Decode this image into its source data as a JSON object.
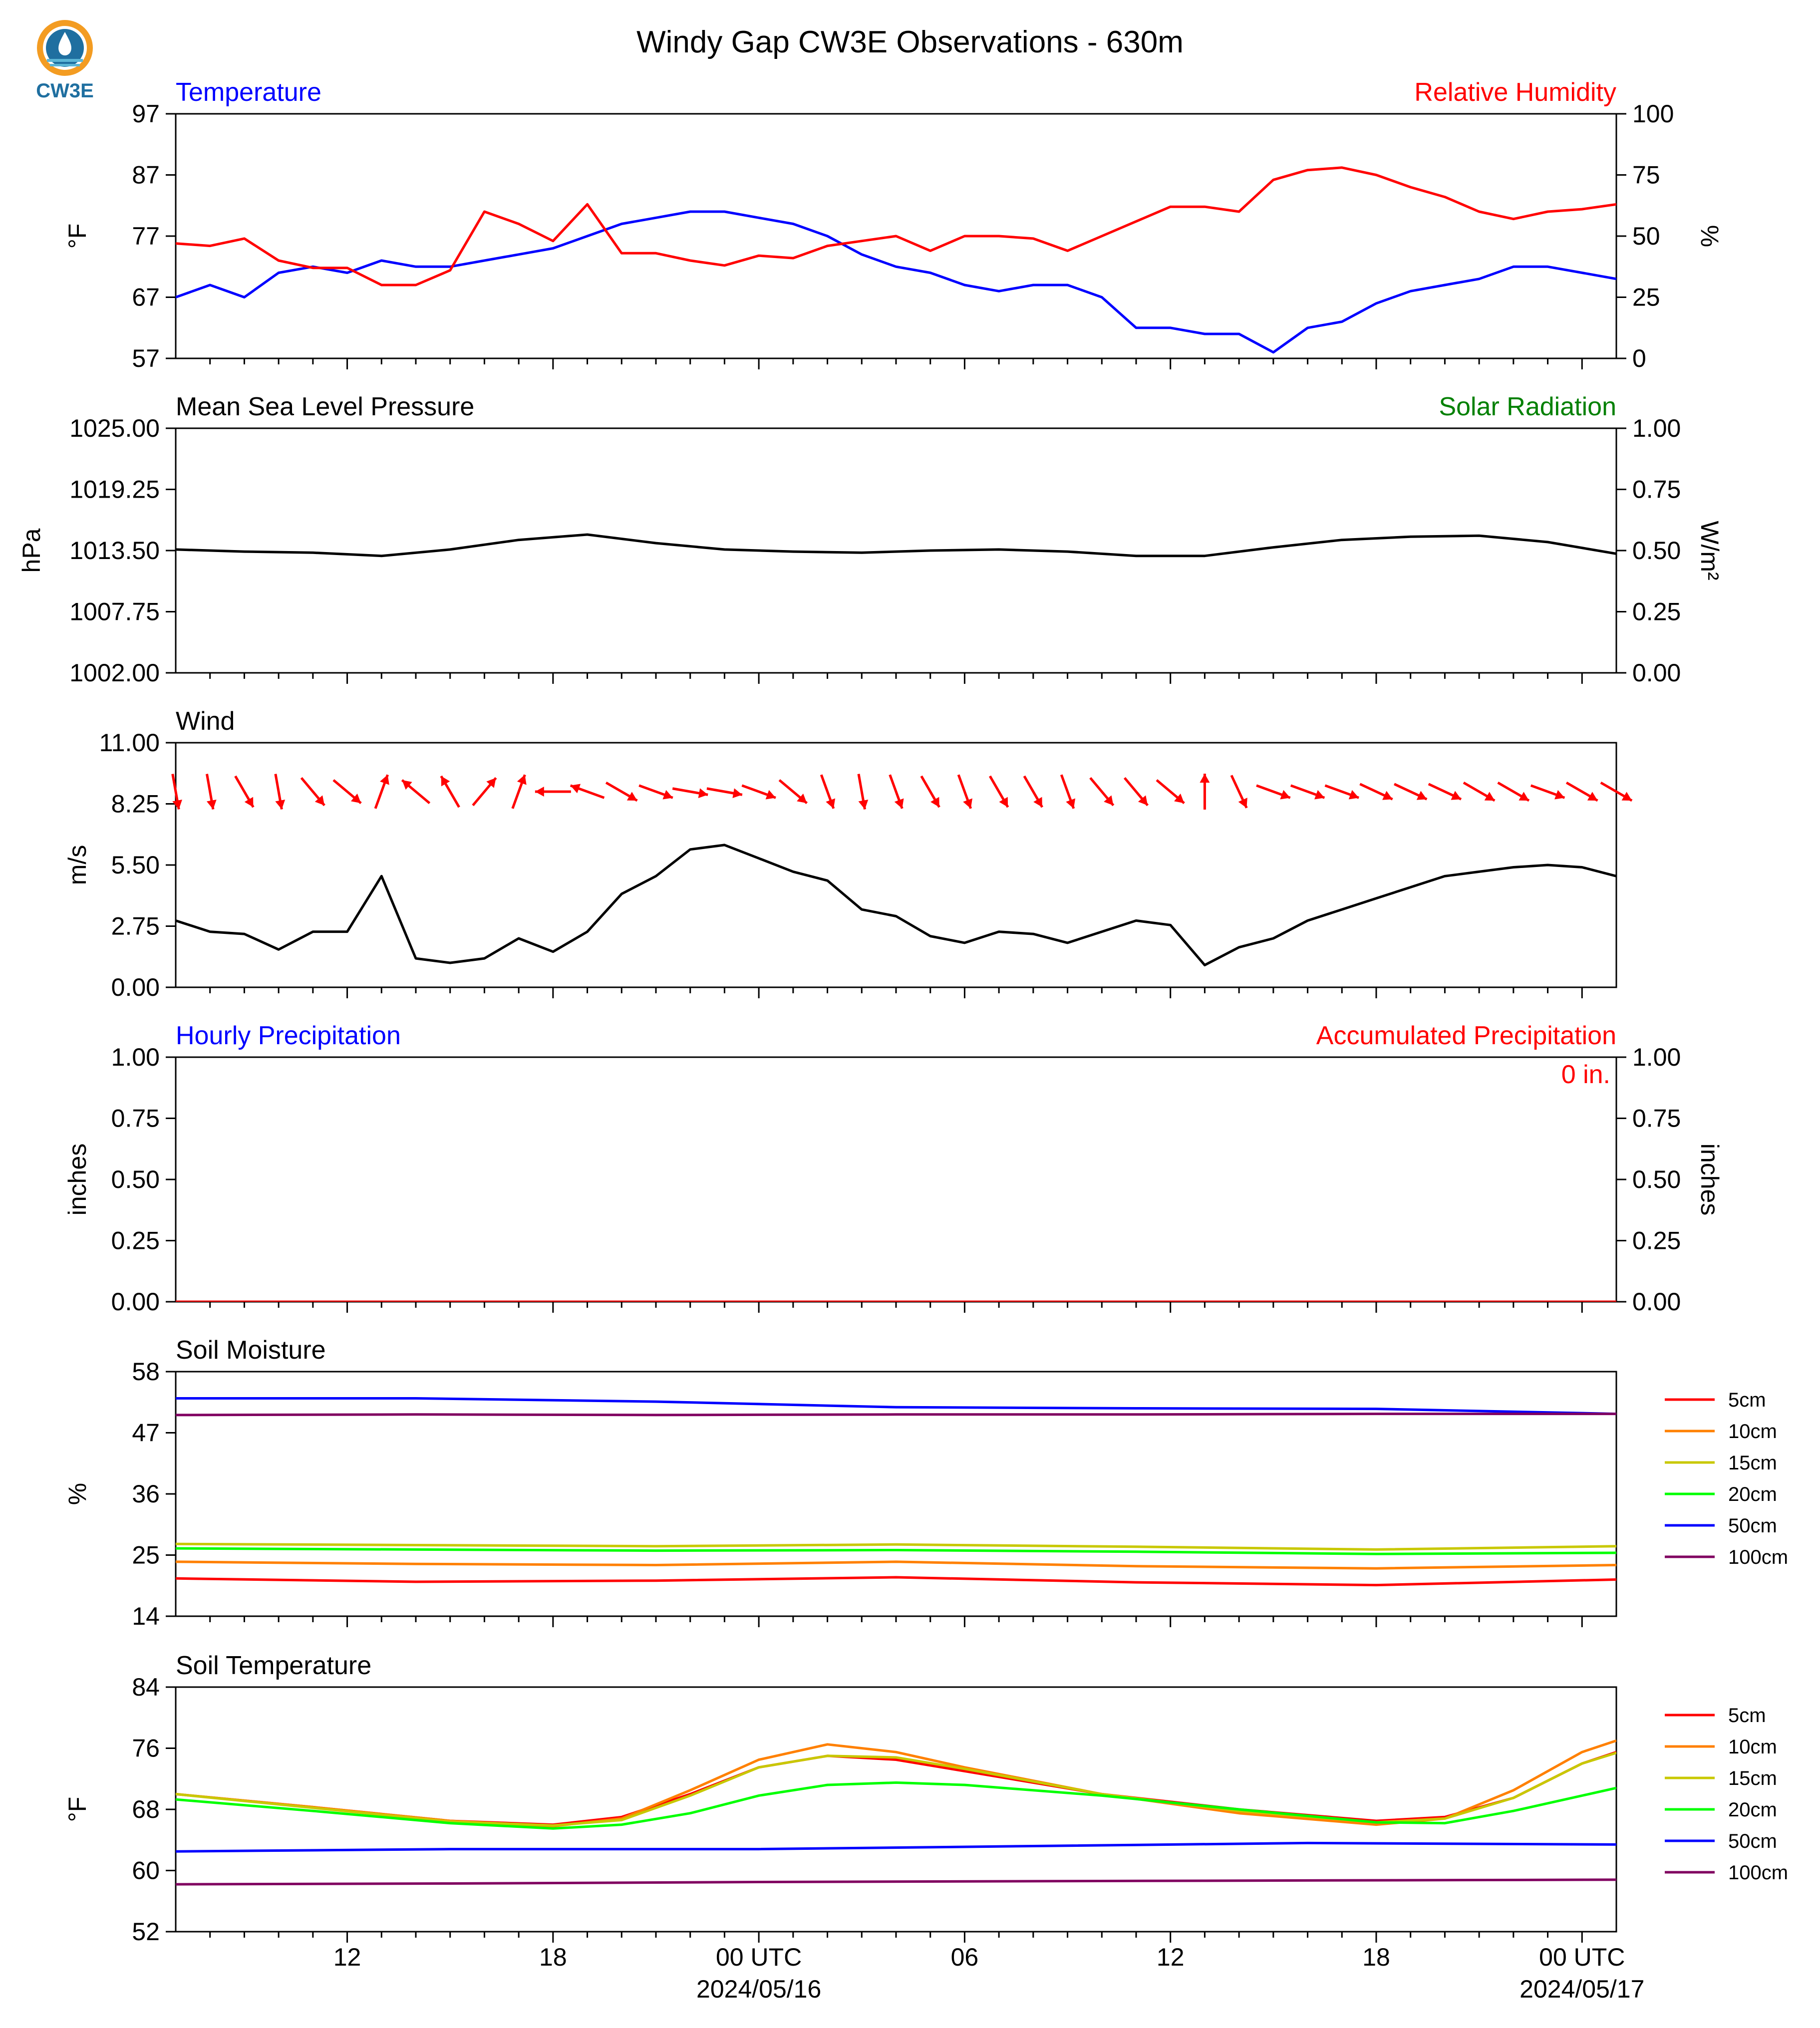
{
  "logo": {
    "text": "CW3E"
  },
  "title": "Windy Gap CW3E Observations - 630m",
  "colors": {
    "red": "#ff0000",
    "blue": "#0000ff",
    "green": "#008000",
    "black": "#000000"
  },
  "x_axis": {
    "ticks": [
      {
        "hour": 12,
        "label": "12"
      },
      {
        "hour": 18,
        "label": "18"
      },
      {
        "hour": 24,
        "label": "00 UTC",
        "sub": "2024/05/16"
      },
      {
        "hour": 30,
        "label": "06"
      },
      {
        "hour": 36,
        "label": "12"
      },
      {
        "hour": 42,
        "label": "18"
      },
      {
        "hour": 48,
        "label": "00 UTC",
        "sub": "2024/05/17"
      }
    ]
  },
  "panels": [
    {
      "key": "temp_rh",
      "title_left": "Temperature",
      "title_left_color": "#0000ff",
      "title_right": "Relative Humidity",
      "title_right_color": "#ff0000",
      "ylabel_left": "°F",
      "ylabel_right": "%",
      "left_ticks": [
        "57",
        "67",
        "77",
        "87",
        "97"
      ],
      "right_ticks": [
        "0",
        "25",
        "50",
        "75",
        "100"
      ]
    },
    {
      "key": "pressure",
      "title_left": "Mean Sea Level Pressure",
      "title_left_color": "#000000",
      "title_right": "Solar Radiation",
      "title_right_color": "#008000",
      "ylabel_left": "hPa",
      "ylabel_right": "W/m²",
      "left_ticks": [
        "1002.00",
        "1007.75",
        "1013.50",
        "1019.25",
        "1025.00"
      ],
      "right_ticks": [
        "0.00",
        "0.25",
        "0.50",
        "0.75",
        "1.00"
      ]
    },
    {
      "key": "wind",
      "title_left": "Wind",
      "title_left_color": "#000000",
      "title_right": "",
      "title_right_color": "#000000",
      "ylabel_left": "m/s",
      "ylabel_right": "",
      "left_ticks": [
        "0.00",
        "2.75",
        "5.50",
        "8.25",
        "11.00"
      ],
      "right_ticks": []
    },
    {
      "key": "precip",
      "title_left": "Hourly Precipitation",
      "title_left_color": "#0000ff",
      "title_right": "Accumulated Precipitation",
      "title_right_color": "#ff0000",
      "ylabel_left": "inches",
      "ylabel_right": "inches",
      "left_ticks": [
        "0.00",
        "0.25",
        "0.50",
        "0.75",
        "1.00"
      ],
      "right_ticks": [
        "0.00",
        "0.25",
        "0.50",
        "0.75",
        "1.00"
      ],
      "annotation": "0 in."
    },
    {
      "key": "soil_moisture",
      "title_left": "Soil Moisture",
      "title_left_color": "#000000",
      "title_right": "",
      "title_right_color": "#000000",
      "ylabel_left": "%",
      "ylabel_right": "",
      "left_ticks": [
        "14",
        "25",
        "36",
        "47",
        "58"
      ],
      "right_ticks": []
    },
    {
      "key": "soil_temp",
      "title_left": "Soil Temperature",
      "title_left_color": "#000000",
      "title_right": "",
      "title_right_color": "#000000",
      "ylabel_left": "°F",
      "ylabel_right": "",
      "left_ticks": [
        "52",
        "60",
        "68",
        "76",
        "84"
      ],
      "right_ticks": []
    }
  ],
  "legend": [
    {
      "name": "5cm",
      "color": "#ff0000"
    },
    {
      "name": "10cm",
      "color": "#ff8000"
    },
    {
      "name": "15cm",
      "color": "#c8c800"
    },
    {
      "name": "20cm",
      "color": "#00ff00"
    },
    {
      "name": "50cm",
      "color": "#0000ff"
    },
    {
      "name": "100cm",
      "color": "#800060"
    }
  ],
  "chart_data": [
    {
      "type": "line",
      "title": "Temperature / Relative Humidity",
      "x_unit": "hours since 2024-05-15 00 UTC",
      "xlim": [
        7,
        49
      ],
      "ylim": [
        57,
        97
      ],
      "y2lim": [
        0,
        100
      ],
      "series": [
        {
          "name": "Temperature",
          "color": "#0000ff",
          "axis": "left",
          "x": [
            7,
            8,
            9,
            10,
            11,
            12,
            13,
            14,
            15,
            16,
            17,
            18,
            19,
            20,
            21,
            22,
            23,
            24,
            25,
            26,
            27,
            28,
            29,
            30,
            31,
            32,
            33,
            34,
            35,
            36,
            37,
            38,
            39,
            40,
            41,
            42,
            43,
            44,
            45,
            46,
            47,
            48,
            49
          ],
          "y": [
            67,
            69,
            67,
            71,
            72,
            71,
            73,
            72,
            72,
            73,
            74,
            75,
            77,
            79,
            80,
            81,
            81,
            80,
            79,
            77,
            74,
            72,
            71,
            69,
            68,
            69,
            69,
            67,
            62,
            62,
            61,
            61,
            58,
            62,
            63,
            66,
            68,
            69,
            70,
            72,
            72,
            71,
            70
          ]
        },
        {
          "name": "Relative Humidity",
          "color": "#ff0000",
          "axis": "right",
          "x": [
            7,
            8,
            9,
            10,
            11,
            12,
            13,
            14,
            15,
            16,
            17,
            18,
            19,
            20,
            21,
            22,
            23,
            24,
            25,
            26,
            27,
            28,
            29,
            30,
            31,
            32,
            33,
            34,
            35,
            36,
            37,
            38,
            39,
            40,
            41,
            42,
            43,
            44,
            45,
            46,
            47,
            48,
            49
          ],
          "y": [
            47,
            46,
            49,
            40,
            37,
            37,
            30,
            30,
            36,
            60,
            55,
            48,
            63,
            43,
            43,
            40,
            38,
            42,
            41,
            46,
            48,
            50,
            44,
            50,
            50,
            49,
            44,
            50,
            56,
            62,
            62,
            60,
            73,
            77,
            78,
            75,
            70,
            66,
            60,
            57,
            60,
            61,
            63
          ]
        }
      ]
    },
    {
      "type": "line",
      "title": "Mean Sea Level Pressure",
      "xlim": [
        7,
        49
      ],
      "ylim": [
        1002,
        1025
      ],
      "series": [
        {
          "name": "Mean Sea Level Pressure",
          "color": "#000000",
          "x": [
            7,
            9,
            11,
            13,
            15,
            17,
            19,
            21,
            23,
            25,
            27,
            29,
            31,
            33,
            35,
            37,
            39,
            41,
            43,
            45,
            47,
            49
          ],
          "y": [
            1013.6,
            1013.4,
            1013.3,
            1013.0,
            1013.6,
            1014.5,
            1015.0,
            1014.2,
            1013.6,
            1013.4,
            1013.3,
            1013.5,
            1013.6,
            1013.4,
            1013.0,
            1013.0,
            1013.8,
            1014.5,
            1014.8,
            1014.9,
            1014.3,
            1013.2
          ]
        }
      ]
    },
    {
      "type": "line",
      "title": "Wind",
      "xlim": [
        7,
        49
      ],
      "ylim": [
        0,
        11
      ],
      "series": [
        {
          "name": "Wind Speed",
          "color": "#000000",
          "x": [
            7,
            8,
            9,
            10,
            11,
            12,
            13,
            14,
            15,
            16,
            17,
            18,
            19,
            20,
            21,
            22,
            23,
            24,
            25,
            26,
            27,
            28,
            29,
            30,
            31,
            32,
            33,
            34,
            35,
            36,
            37,
            38,
            39,
            40,
            41,
            42,
            43,
            44,
            45,
            46,
            47,
            48,
            49
          ],
          "y": [
            3.0,
            2.5,
            2.4,
            1.7,
            2.5,
            2.5,
            5.0,
            1.3,
            1.1,
            1.3,
            2.2,
            1.6,
            2.5,
            4.2,
            5.0,
            6.2,
            6.4,
            5.8,
            5.2,
            4.8,
            3.5,
            3.2,
            2.3,
            2.0,
            2.5,
            2.4,
            2.0,
            2.5,
            3.0,
            2.8,
            1.0,
            1.8,
            2.2,
            3.0,
            3.5,
            4.0,
            4.5,
            5.0,
            5.2,
            5.4,
            5.5,
            5.4,
            5.0
          ]
        },
        {
          "name": "Wind Direction",
          "color": "#ff0000",
          "x": [
            7,
            8,
            9,
            10,
            11,
            12,
            13,
            14,
            15,
            16,
            17,
            18,
            19,
            20,
            21,
            22,
            23,
            24,
            25,
            26,
            27,
            28,
            29,
            30,
            31,
            32,
            33,
            34,
            35,
            36,
            37,
            38,
            39,
            40,
            41,
            42,
            43,
            44,
            45,
            46,
            47,
            48,
            49
          ],
          "dir": [
            350,
            350,
            330,
            350,
            320,
            310,
            200,
            130,
            150,
            220,
            200,
            90,
            110,
            300,
            290,
            280,
            280,
            290,
            310,
            340,
            350,
            340,
            330,
            340,
            330,
            330,
            340,
            320,
            320,
            310,
            180,
            335,
            290,
            290,
            290,
            295,
            295,
            295,
            300,
            300,
            290,
            300,
            300
          ]
        }
      ]
    },
    {
      "type": "line",
      "title": "Hourly Precipitation",
      "xlim": [
        7,
        49
      ],
      "ylim": [
        0,
        1
      ],
      "y2lim": [
        0,
        1
      ],
      "series": [
        {
          "name": "Hourly Precipitation",
          "color": "#0000ff",
          "x": [
            7,
            49
          ],
          "y": [
            0,
            0
          ]
        },
        {
          "name": "Accumulated Precipitation",
          "color": "#ff0000",
          "x": [
            7,
            49
          ],
          "y": [
            0,
            0
          ]
        }
      ]
    },
    {
      "type": "line",
      "title": "Soil Moisture",
      "xlim": [
        7,
        49
      ],
      "ylim": [
        14,
        58
      ],
      "series": [
        {
          "name": "5cm",
          "color": "#ff0000",
          "x": [
            7,
            14,
            21,
            28,
            35,
            42,
            49
          ],
          "y": [
            20.8,
            20.2,
            20.4,
            21.0,
            20.1,
            19.6,
            20.6
          ]
        },
        {
          "name": "10cm",
          "color": "#ff8000",
          "x": [
            7,
            14,
            21,
            28,
            35,
            42,
            49
          ],
          "y": [
            23.8,
            23.4,
            23.2,
            23.8,
            23.0,
            22.6,
            23.2
          ]
        },
        {
          "name": "15cm",
          "color": "#c8c800",
          "x": [
            7,
            14,
            21,
            28,
            35,
            42,
            49
          ],
          "y": [
            27.0,
            26.8,
            26.6,
            26.9,
            26.5,
            26.0,
            26.6
          ]
        },
        {
          "name": "20cm",
          "color": "#00ff00",
          "x": [
            7,
            14,
            21,
            28,
            35,
            42,
            49
          ],
          "y": [
            26.2,
            26.0,
            25.8,
            25.9,
            25.6,
            25.2,
            25.4
          ]
        },
        {
          "name": "50cm",
          "color": "#0000ff",
          "x": [
            7,
            14,
            21,
            28,
            35,
            42,
            49
          ],
          "y": [
            53.2,
            53.2,
            52.6,
            51.6,
            51.4,
            51.3,
            50.4
          ]
        },
        {
          "name": "100cm",
          "color": "#800060",
          "x": [
            7,
            14,
            21,
            28,
            35,
            42,
            49
          ],
          "y": [
            50.2,
            50.3,
            50.2,
            50.3,
            50.3,
            50.4,
            50.4
          ]
        }
      ]
    },
    {
      "type": "line",
      "title": "Soil Temperature",
      "xlim": [
        7,
        49
      ],
      "ylim": [
        52,
        84
      ],
      "series": [
        {
          "name": "5cm",
          "color": "#ff0000",
          "x": [
            7,
            11,
            15,
            18,
            20,
            22,
            24,
            26,
            28,
            30,
            34,
            38,
            42,
            44,
            46,
            48,
            49
          ],
          "y": [
            70,
            68.3,
            66.5,
            66.0,
            67.0,
            70.0,
            73.5,
            75.0,
            74.5,
            73.0,
            70.0,
            68.0,
            66.5,
            67.0,
            69.5,
            74.0,
            75.5
          ]
        },
        {
          "name": "10cm",
          "color": "#ff8000",
          "x": [
            7,
            11,
            15,
            18,
            20,
            22,
            24,
            26,
            28,
            30,
            34,
            38,
            42,
            44,
            46,
            48,
            49
          ],
          "y": [
            70,
            68.3,
            66.5,
            65.8,
            66.8,
            70.5,
            74.5,
            76.5,
            75.5,
            73.5,
            70.0,
            67.5,
            66.0,
            66.8,
            70.5,
            75.5,
            77.0
          ]
        },
        {
          "name": "15cm",
          "color": "#c8c800",
          "x": [
            7,
            11,
            15,
            18,
            20,
            22,
            24,
            26,
            28,
            30,
            34,
            38,
            42,
            44,
            46,
            48,
            49
          ],
          "y": [
            70,
            68.2,
            66.4,
            65.9,
            66.6,
            69.8,
            73.5,
            75.0,
            74.8,
            73.3,
            70.0,
            67.8,
            66.3,
            66.8,
            69.5,
            74.0,
            75.4
          ]
        },
        {
          "name": "20cm",
          "color": "#00ff00",
          "x": [
            7,
            11,
            15,
            18,
            20,
            22,
            24,
            26,
            28,
            30,
            34,
            38,
            42,
            44,
            46,
            48,
            49
          ],
          "y": [
            69.3,
            67.8,
            66.2,
            65.5,
            66.0,
            67.5,
            69.8,
            71.2,
            71.5,
            71.2,
            69.8,
            68.0,
            66.3,
            66.2,
            67.8,
            69.8,
            70.8
          ]
        },
        {
          "name": "50cm",
          "color": "#0000ff",
          "x": [
            7,
            15,
            24,
            32,
            40,
            49
          ],
          "y": [
            62.5,
            62.8,
            62.8,
            63.2,
            63.6,
            63.4
          ]
        },
        {
          "name": "100cm",
          "color": "#800060",
          "x": [
            7,
            15,
            24,
            32,
            40,
            49
          ],
          "y": [
            58.2,
            58.3,
            58.5,
            58.6,
            58.7,
            58.8
          ]
        }
      ]
    }
  ]
}
